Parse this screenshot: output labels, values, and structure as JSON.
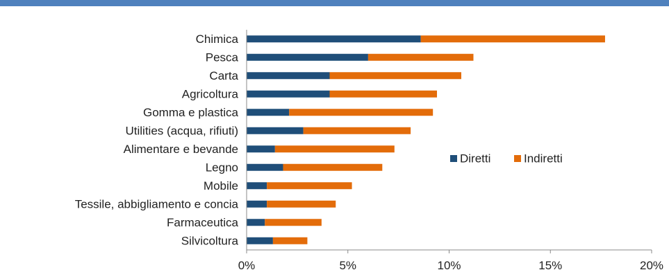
{
  "chart_data": {
    "type": "bar",
    "orientation": "horizontal",
    "stacked": true,
    "categories": [
      "Chimica",
      "Pesca",
      "Carta",
      "Agricoltura",
      "Gomma e plastica",
      "Utilities (acqua, rifiuti)",
      "Alimentare e bevande",
      "Legno",
      "Mobile",
      "Tessile, abbigliamento e concia",
      "Farmaceutica",
      "Silvicoltura"
    ],
    "series": [
      {
        "name": "Diretti",
        "color": "#1f4e79",
        "values": [
          8.6,
          6.0,
          4.1,
          4.1,
          2.1,
          2.8,
          1.4,
          1.8,
          1.0,
          1.0,
          0.9,
          1.3
        ]
      },
      {
        "name": "Indiretti",
        "color": "#e36c0a",
        "values": [
          9.1,
          5.2,
          6.5,
          5.3,
          7.1,
          5.3,
          5.9,
          4.9,
          4.2,
          3.4,
          2.8,
          1.7
        ]
      }
    ],
    "xlim": [
      0,
      20
    ],
    "xticks": [
      0,
      5,
      10,
      15,
      20
    ],
    "xtick_labels": [
      "0%",
      "5%",
      "10%",
      "15%",
      "20%"
    ],
    "legend_position": "right-center",
    "grid": false
  },
  "header_band_color": "#4f81bd"
}
